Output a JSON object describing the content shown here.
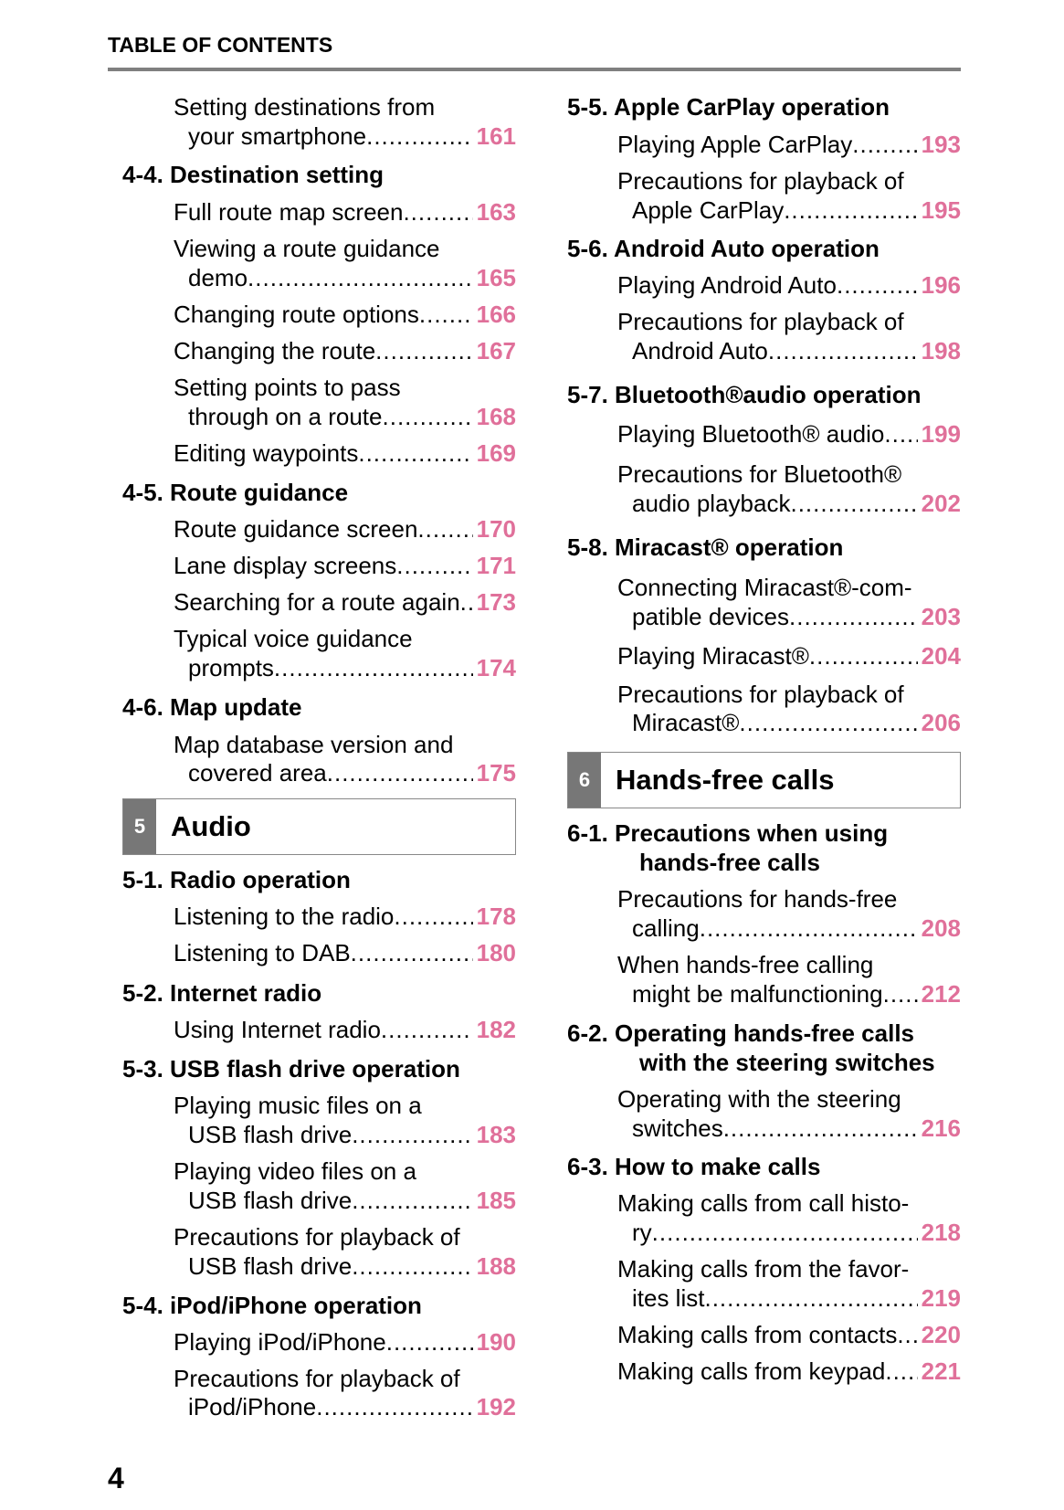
{
  "header": {
    "title": "TABLE OF CONTENTS"
  },
  "page_number": "4",
  "colors": {
    "page_number_accent": "#e0709a",
    "rule": "#808080",
    "box_tab": "#777777"
  },
  "left_column": [
    {
      "type": "item",
      "lines": [
        "Setting destinations from",
        "your smartphone"
      ],
      "page": "161"
    },
    {
      "type": "head",
      "lines": [
        "4-4. Destination setting"
      ]
    },
    {
      "type": "item",
      "lines": [
        "Full route map screen"
      ],
      "page": "163"
    },
    {
      "type": "item",
      "lines": [
        "Viewing a route guidance",
        "demo"
      ],
      "page": "165"
    },
    {
      "type": "item",
      "lines": [
        "Changing route options"
      ],
      "page": "166"
    },
    {
      "type": "item",
      "lines": [
        "Changing the route"
      ],
      "page": "167"
    },
    {
      "type": "item",
      "lines": [
        "Setting points to pass",
        "through on a route"
      ],
      "page": "168"
    },
    {
      "type": "item",
      "lines": [
        "Editing waypoints"
      ],
      "page": "169"
    },
    {
      "type": "head",
      "lines": [
        "4-5. Route guidance"
      ]
    },
    {
      "type": "item",
      "lines": [
        "Route guidance screen"
      ],
      "page": "170"
    },
    {
      "type": "item",
      "lines": [
        "Lane display screens"
      ],
      "page": "171"
    },
    {
      "type": "item",
      "lines": [
        "Searching for a route again"
      ],
      "page": "173"
    },
    {
      "type": "item",
      "lines": [
        "Typical voice guidance",
        "prompts"
      ],
      "page": "174"
    },
    {
      "type": "head",
      "lines": [
        "4-6. Map update"
      ]
    },
    {
      "type": "item",
      "lines": [
        "Map database version and",
        "covered area"
      ],
      "page": "175"
    },
    {
      "type": "box",
      "number": "5",
      "title": "Audio"
    },
    {
      "type": "head",
      "lines": [
        "5-1. Radio operation"
      ]
    },
    {
      "type": "item",
      "lines": [
        "Listening to the radio"
      ],
      "page": "178"
    },
    {
      "type": "item",
      "lines": [
        "Listening to DAB"
      ],
      "page": "180"
    },
    {
      "type": "head",
      "lines": [
        "5-2. Internet radio"
      ]
    },
    {
      "type": "item",
      "lines": [
        "Using Internet radio"
      ],
      "page": "182"
    },
    {
      "type": "head",
      "lines": [
        "5-3. USB flash drive operation"
      ]
    },
    {
      "type": "item",
      "lines": [
        "Playing music files on a",
        "USB flash drive"
      ],
      "page": "183"
    },
    {
      "type": "item",
      "lines": [
        "Playing video files on a",
        "USB flash drive"
      ],
      "page": "185"
    },
    {
      "type": "item",
      "lines": [
        "Precautions for playback of",
        "USB flash drive"
      ],
      "page": "188"
    },
    {
      "type": "head",
      "lines": [
        "5-4. iPod/iPhone operation"
      ]
    },
    {
      "type": "item",
      "lines": [
        "Playing iPod/iPhone"
      ],
      "page": "190"
    },
    {
      "type": "item",
      "lines": [
        "Precautions for playback of",
        "iPod/iPhone"
      ],
      "page": "192"
    }
  ],
  "right_column": [
    {
      "type": "head",
      "lines": [
        "5-5. Apple CarPlay operation"
      ]
    },
    {
      "type": "item",
      "lines": [
        "Playing Apple CarPlay"
      ],
      "page": "193"
    },
    {
      "type": "item",
      "lines": [
        "Precautions for playback of",
        "Apple CarPlay"
      ],
      "page": "195"
    },
    {
      "type": "head",
      "lines": [
        "5-6. Android Auto operation"
      ]
    },
    {
      "type": "item",
      "lines": [
        "Playing Android Auto"
      ],
      "page": "196"
    },
    {
      "type": "item",
      "lines": [
        "Precautions for playback of",
        "Android Auto"
      ],
      "page": "198"
    },
    {
      "type": "head",
      "lines": [
        "5-7. Bluetooth®audio operation"
      ]
    },
    {
      "type": "item",
      "lines": [
        "Playing Bluetooth® audio"
      ],
      "page": "199"
    },
    {
      "type": "item",
      "lines": [
        "Precautions for Bluetooth®",
        "audio playback"
      ],
      "page": "202"
    },
    {
      "type": "head",
      "lines": [
        "5-8. Miracast® operation"
      ]
    },
    {
      "type": "item",
      "lines": [
        "Connecting Miracast®-com-",
        "patible devices"
      ],
      "page": "203"
    },
    {
      "type": "item",
      "lines": [
        "Playing Miracast®"
      ],
      "page": "204"
    },
    {
      "type": "item",
      "lines": [
        "Precautions for playback of",
        "Miracast®"
      ],
      "page": "206"
    },
    {
      "type": "box",
      "number": "6",
      "title": "Hands-free calls"
    },
    {
      "type": "head",
      "lines": [
        "6-1. Precautions when using",
        "hands-free calls"
      ]
    },
    {
      "type": "item",
      "lines": [
        "Precautions for hands-free",
        "calling"
      ],
      "page": "208"
    },
    {
      "type": "item",
      "lines": [
        "When hands-free calling",
        "might be malfunctioning"
      ],
      "page": "212"
    },
    {
      "type": "head",
      "lines": [
        "6-2. Operating hands-free calls",
        "with the steering switches"
      ]
    },
    {
      "type": "item",
      "lines": [
        "Operating with the steering",
        "switches"
      ],
      "page": "216"
    },
    {
      "type": "head",
      "lines": [
        "6-3. How to make calls"
      ]
    },
    {
      "type": "item",
      "lines": [
        "Making calls from call histo-",
        "ry"
      ],
      "page": "218"
    },
    {
      "type": "item",
      "lines": [
        "Making calls from the favor-",
        "ites list"
      ],
      "page": "219"
    },
    {
      "type": "item",
      "lines": [
        "Making calls from contacts"
      ],
      "page": "220"
    },
    {
      "type": "item",
      "lines": [
        "Making calls from keypad"
      ],
      "page": "221"
    }
  ]
}
